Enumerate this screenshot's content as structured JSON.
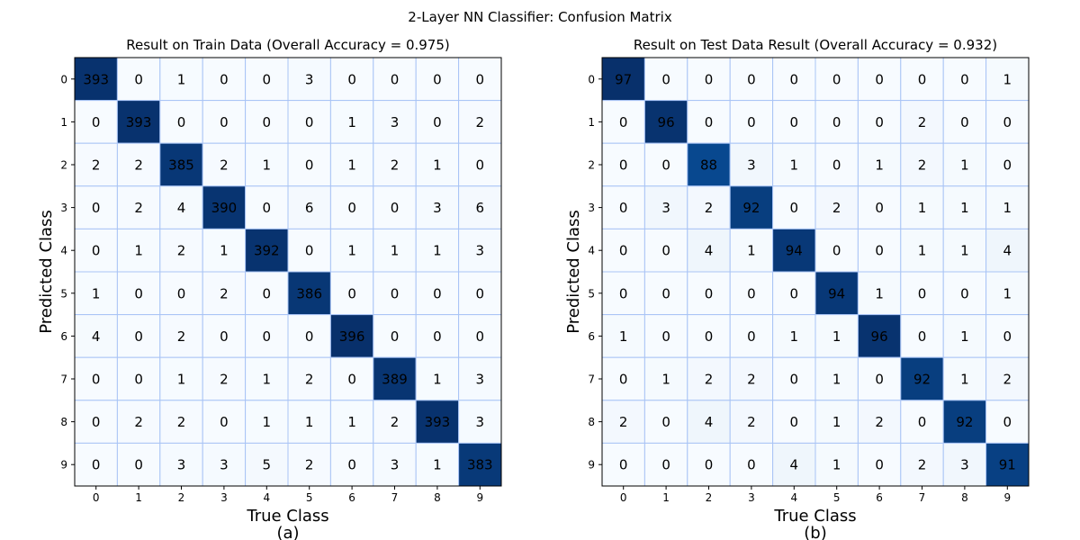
{
  "figure_title": "2-Layer NN Classifier: Confusion Matrix",
  "chart_data": [
    {
      "type": "heatmap",
      "title": "Result on Train Data (Overall Accuracy = 0.975)",
      "xlabel": "True Class",
      "ylabel": "Predicted Class",
      "caption": "(a)",
      "x_categories": [
        "0",
        "1",
        "2",
        "3",
        "4",
        "5",
        "6",
        "7",
        "8",
        "9"
      ],
      "y_categories": [
        "0",
        "1",
        "2",
        "3",
        "4",
        "5",
        "6",
        "7",
        "8",
        "9"
      ],
      "colormap": "Blues",
      "grid_color": "#a9c4f5",
      "values": [
        [
          393,
          0,
          1,
          0,
          0,
          3,
          0,
          0,
          0,
          0
        ],
        [
          0,
          393,
          0,
          0,
          0,
          0,
          1,
          3,
          0,
          2
        ],
        [
          2,
          2,
          385,
          2,
          1,
          0,
          1,
          2,
          1,
          0
        ],
        [
          0,
          2,
          4,
          390,
          0,
          6,
          0,
          0,
          3,
          6
        ],
        [
          0,
          1,
          2,
          1,
          392,
          0,
          1,
          1,
          1,
          3
        ],
        [
          1,
          0,
          0,
          2,
          0,
          386,
          0,
          0,
          0,
          0
        ],
        [
          4,
          0,
          2,
          0,
          0,
          0,
          396,
          0,
          0,
          0
        ],
        [
          0,
          0,
          1,
          2,
          1,
          2,
          0,
          389,
          1,
          3
        ],
        [
          0,
          2,
          2,
          0,
          1,
          1,
          1,
          2,
          393,
          3
        ],
        [
          0,
          0,
          3,
          3,
          5,
          2,
          0,
          3,
          1,
          383
        ]
      ]
    },
    {
      "type": "heatmap",
      "title": "Result on Test Data Result (Overall Accuracy = 0.932)",
      "xlabel": "True Class",
      "ylabel": "Predicted Class",
      "caption": "(b)",
      "x_categories": [
        "0",
        "1",
        "2",
        "3",
        "4",
        "5",
        "6",
        "7",
        "8",
        "9"
      ],
      "y_categories": [
        "0",
        "1",
        "2",
        "3",
        "4",
        "5",
        "6",
        "7",
        "8",
        "9"
      ],
      "colormap": "Blues",
      "grid_color": "#a9c4f5",
      "values": [
        [
          97,
          0,
          0,
          0,
          0,
          0,
          0,
          0,
          0,
          1
        ],
        [
          0,
          96,
          0,
          0,
          0,
          0,
          0,
          2,
          0,
          0
        ],
        [
          0,
          0,
          88,
          3,
          1,
          0,
          1,
          2,
          1,
          0
        ],
        [
          0,
          3,
          2,
          92,
          0,
          2,
          0,
          1,
          1,
          1
        ],
        [
          0,
          0,
          4,
          1,
          94,
          0,
          0,
          1,
          1,
          4
        ],
        [
          0,
          0,
          0,
          0,
          0,
          94,
          1,
          0,
          0,
          1
        ],
        [
          1,
          0,
          0,
          0,
          1,
          1,
          96,
          0,
          1,
          0
        ],
        [
          0,
          1,
          2,
          2,
          0,
          1,
          0,
          92,
          1,
          2
        ],
        [
          2,
          0,
          4,
          2,
          0,
          1,
          2,
          0,
          92,
          0
        ],
        [
          0,
          0,
          0,
          0,
          4,
          1,
          0,
          2,
          3,
          91
        ]
      ]
    }
  ]
}
